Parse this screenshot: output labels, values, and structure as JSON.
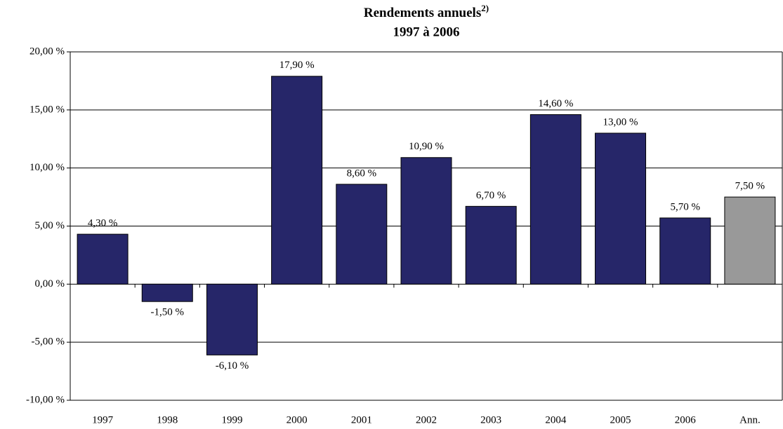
{
  "chart_data": {
    "type": "bar",
    "title": "Rendements annuels",
    "title_superscript": "2)",
    "subtitle": "1997 à 2006",
    "categories": [
      "1997",
      "1998",
      "1999",
      "2000",
      "2001",
      "2002",
      "2003",
      "2004",
      "2005",
      "2006",
      "Ann."
    ],
    "values": [
      4.3,
      -1.5,
      -6.1,
      17.9,
      8.6,
      10.9,
      6.7,
      14.6,
      13.0,
      5.7,
      7.5
    ],
    "value_labels": [
      "4,30 %",
      "-1,50 %",
      "-6,10 %",
      "17,90 %",
      "8,60 %",
      "10,90 %",
      "6,70 %",
      "14,60 %",
      "13,00 %",
      "5,70 %",
      "7,50 %"
    ],
    "colors": [
      "#262669",
      "#262669",
      "#262669",
      "#262669",
      "#262669",
      "#262669",
      "#262669",
      "#262669",
      "#262669",
      "#262669",
      "#999999"
    ],
    "ylim": [
      -10,
      20
    ],
    "yticks": [
      {
        "value": -10,
        "label": "-10,00 %"
      },
      {
        "value": -5,
        "label": "-5,00 %"
      },
      {
        "value": 0,
        "label": "0,00 %"
      },
      {
        "value": 5,
        "label": "5,00 %"
      },
      {
        "value": 10,
        "label": "10,00 %"
      },
      {
        "value": 15,
        "label": "15,00 %"
      },
      {
        "value": 20,
        "label": "20,00 %"
      }
    ],
    "grid": true
  }
}
